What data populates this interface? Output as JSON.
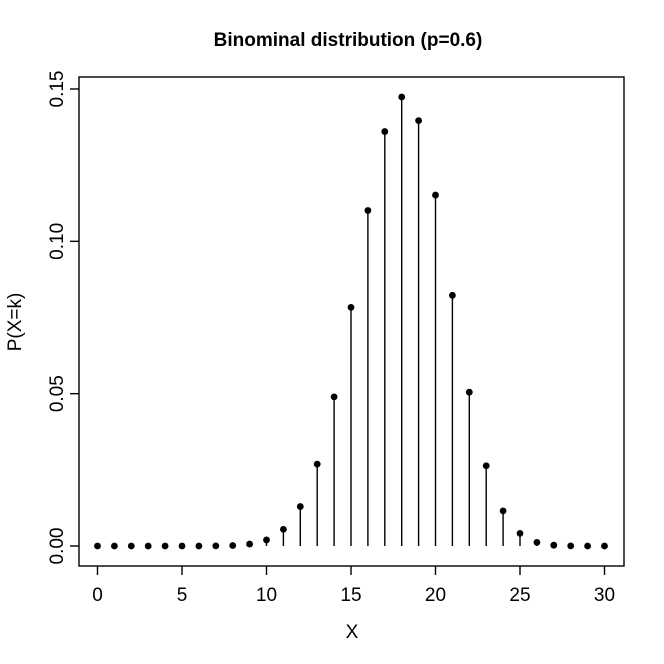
{
  "figure": {
    "background": "#ffffff",
    "foreground": "#000000"
  },
  "chart_data": {
    "type": "scatter",
    "subtype": "stem-and-point (R plot type='h' with pch=19 points)",
    "title": "Binominal distribution (p=0.6)",
    "xlabel": "X",
    "ylabel": "P(X=k)",
    "grid": false,
    "legend_position": "none",
    "point_color": "#000000",
    "stem_color": "#000000",
    "background": "#ffffff",
    "xlim": [
      0,
      30
    ],
    "ylim": [
      0,
      0.15
    ],
    "x_tick_values": [
      0,
      5,
      10,
      15,
      20,
      25,
      30
    ],
    "x_tick_labels": [
      "0",
      "5",
      "10",
      "15",
      "20",
      "25",
      "30"
    ],
    "y_tick_values": [
      0.0,
      0.05,
      0.1,
      0.15
    ],
    "y_tick_labels": [
      "0.00",
      "0.05",
      "0.10",
      "0.15"
    ],
    "x": [
      0,
      1,
      2,
      3,
      4,
      5,
      6,
      7,
      8,
      9,
      10,
      11,
      12,
      13,
      14,
      15,
      16,
      17,
      18,
      19,
      20,
      21,
      22,
      23,
      24,
      25,
      26,
      27,
      28,
      29,
      30
    ],
    "values": [
      1.15e-12,
      5.19e-11,
      1.13e-09,
      1.58e-08,
      1.6e-07,
      1.25e-06,
      7.8e-06,
      4.01e-05,
      0.000173,
      0.000634,
      0.001998,
      0.005448,
      0.012939,
      0.026874,
      0.048945,
      0.078312,
      0.110131,
      0.136035,
      0.147375,
      0.139619,
      0.115185,
      0.082275,
      0.050487,
      0.026341,
      0.011524,
      0.004149,
      0.001197,
      0.000266,
      4.27e-05,
      4.4e-06,
      2e-07
    ]
  }
}
